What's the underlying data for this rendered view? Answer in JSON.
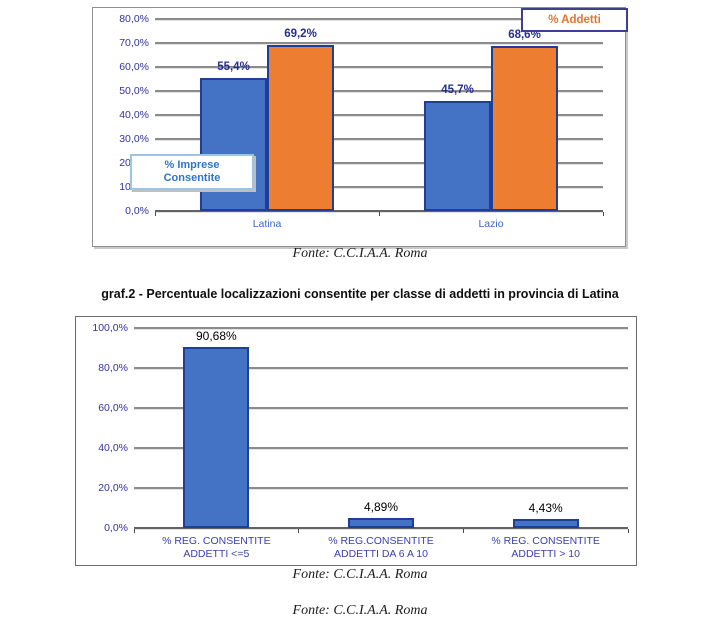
{
  "colors": {
    "bar_blue": "#4472C4",
    "bar_orange": "#ED7D31",
    "bar_border": "#1E3F97",
    "gridline": "#8C8C8C",
    "axis_tick_text": "#3333A0",
    "chart1_category_text": "#3867C8",
    "chart2_category_text": "#3A3FAE",
    "chart1_datalabel": "#262F8F",
    "chart2_datalabel": "#000000",
    "legend_text": "#E8732C",
    "legend_border": "#3F3F8F",
    "series_box_border": "#9DC3E6",
    "series_box_text": "#2E75C9"
  },
  "chart_data": [
    {
      "type": "bar",
      "title": "",
      "xlabel": "",
      "ylabel": "",
      "categories": [
        "Latina",
        "Lazio"
      ],
      "series": [
        {
          "name": "% Imprese Consentite",
          "color_key": "bar_blue",
          "values": [
            55.4,
            45.7
          ],
          "labels": [
            "55,4%",
            "45,7%"
          ]
        },
        {
          "name": "% Addetti",
          "color_key": "bar_orange",
          "values": [
            69.2,
            68.6
          ],
          "labels": [
            "69,2%",
            "68,6%"
          ]
        }
      ],
      "ylim": [
        0,
        80
      ],
      "yticks": [
        "80,0%",
        "70,0%",
        "60,0%",
        "50,0%",
        "40,0%",
        "30,0%",
        "20,0%",
        "10,0%",
        "0,0%"
      ],
      "grid": true,
      "legend": {
        "label": "% Addetti",
        "position": "top-right"
      },
      "series_label_box": {
        "lines": [
          "% Imprese",
          "Consentite"
        ]
      },
      "source": "Fonte: C.C.I.A.A. Roma"
    },
    {
      "type": "bar",
      "title": "graf.2 - Percentuale localizzazioni consentite per classe di addetti in provincia di Latina",
      "xlabel": "",
      "ylabel": "",
      "categories": [
        [
          "% REG. CONSENTITE",
          "ADDETTI <=5"
        ],
        [
          "% REG.CONSENTITE",
          "ADDETTI DA 6 A 10"
        ],
        [
          "% REG. CONSENTITE",
          "ADDETTI > 10"
        ]
      ],
      "values": [
        90.68,
        4.89,
        4.43
      ],
      "labels": [
        "90,68%",
        "4,89%",
        "4,43%"
      ],
      "ylim": [
        0,
        100
      ],
      "yticks": [
        "100,0%",
        "80,0%",
        "60,0%",
        "40,0%",
        "20,0%",
        "0,0%"
      ],
      "grid": true,
      "legend": null,
      "source": "Fonte: C.C.I.A.A. Roma"
    }
  ],
  "footer": {
    "source": "Fonte: C.C.I.A.A. Roma"
  }
}
